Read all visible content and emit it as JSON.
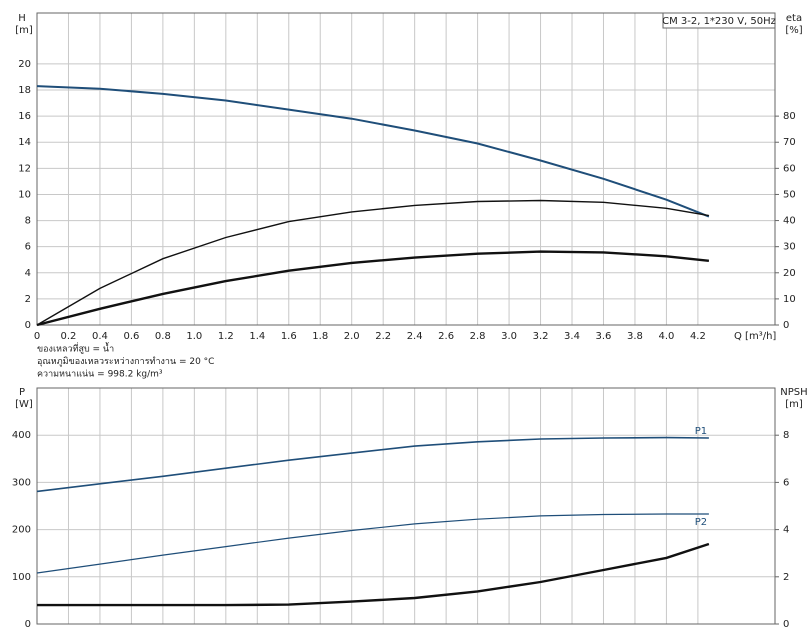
{
  "chart_data": [
    {
      "type": "line",
      "title": "CM 3-2, 1*230 V, 50Hz",
      "ylabel": "H",
      "yunit": "[m]",
      "y2label": "eta",
      "y2unit": "[%]",
      "xlabel": "Q [m³/h]",
      "notes": [
        "ของเหลวที่สูบ = น้ำ",
        "อุณหภูมิของเหลวระหว่างการทำงาน = 20 °C",
        "ความหนาแน่น = 998.2 kg/m³"
      ],
      "x": [
        0,
        0.4,
        0.8,
        1.2,
        1.6,
        2.0,
        2.4,
        2.8,
        3.2,
        3.6,
        4.0,
        4.27
      ],
      "series": [
        {
          "color": "#1f4e79",
          "line_width": 2,
          "values": [
            18.3,
            18.1,
            17.7,
            17.2,
            16.5,
            15.8,
            14.9,
            13.9,
            12.6,
            11.2,
            9.6,
            8.3
          ]
        },
        {
          "color": "#111111",
          "line_width": 1.4,
          "axis": "y2",
          "values": [
            0,
            14,
            25.4,
            33.5,
            39.6,
            43.3,
            45.8,
            47.3,
            47.7,
            47.0,
            44.7,
            41.9
          ]
        },
        {
          "color": "#111111",
          "line_width": 2.4,
          "axis": "y2",
          "values": [
            0,
            6.2,
            11.9,
            16.8,
            20.8,
            23.8,
            25.8,
            27.3,
            28.1,
            27.8,
            26.3,
            24.6
          ]
        }
      ],
      "xlim": [
        0,
        4.69
      ],
      "xticks": [
        0,
        0.2,
        0.4,
        0.6,
        0.8,
        {
          "value": 1,
          "label": "1.0"
        },
        1.2,
        1.4,
        1.6,
        1.8,
        {
          "value": 2,
          "label": "2.0"
        },
        2.2,
        2.4,
        2.6,
        2.8,
        {
          "value": 3,
          "label": "3.0"
        },
        3.2,
        3.4,
        3.6,
        3.8,
        {
          "value": 4,
          "label": "4.0"
        },
        4.2
      ],
      "show_xtick_labels": true,
      "ylim": [
        0,
        23.9
      ],
      "yticks": [
        0,
        2,
        4,
        6,
        8,
        10,
        12,
        14,
        16,
        18,
        20
      ],
      "y2lim": [
        0,
        119.5
      ],
      "y2ticks": [
        0,
        10,
        20,
        30,
        40,
        50,
        60,
        70,
        80
      ],
      "grid": true
    },
    {
      "type": "line",
      "ylabel": "P",
      "yunit": "[W]",
      "y2label": "NPSH",
      "y2unit": "[m]",
      "x": [
        0,
        0.4,
        0.8,
        1.2,
        1.6,
        2.0,
        2.4,
        2.8,
        3.2,
        3.6,
        4.0,
        4.27
      ],
      "series": [
        {
          "name": "P1",
          "color": "#1f4e79",
          "line_width": 1.6,
          "values": [
            281,
            297,
            313,
            330,
            347,
            362,
            377,
            386,
            392,
            394,
            395,
            394
          ]
        },
        {
          "name": "P2",
          "color": "#1f4e79",
          "line_width": 1.2,
          "values": [
            108,
            127,
            146,
            164,
            182,
            198,
            212,
            222,
            229,
            232,
            233,
            233
          ]
        },
        {
          "color": "#111111",
          "line_width": 2.4,
          "axis": "y2",
          "values": [
            0.8,
            0.8,
            0.8,
            0.8,
            0.82,
            0.95,
            1.1,
            1.38,
            1.78,
            2.29,
            2.8,
            3.39
          ]
        }
      ],
      "xlim": [
        0,
        4.69
      ],
      "xticks": [
        0,
        0.2,
        0.4,
        0.6,
        0.8,
        1,
        1.2,
        1.4,
        1.6,
        1.8,
        2,
        2.2,
        2.4,
        2.6,
        2.8,
        3,
        3.2,
        3.4,
        3.6,
        3.8,
        4,
        4.2
      ],
      "show_xtick_labels": false,
      "ylim": [
        0,
        500
      ],
      "yticks": [
        0,
        100,
        200,
        300,
        400
      ],
      "y2lim": [
        0,
        10
      ],
      "y2ticks": [
        0,
        2,
        4,
        6,
        8
      ],
      "grid": true
    }
  ]
}
